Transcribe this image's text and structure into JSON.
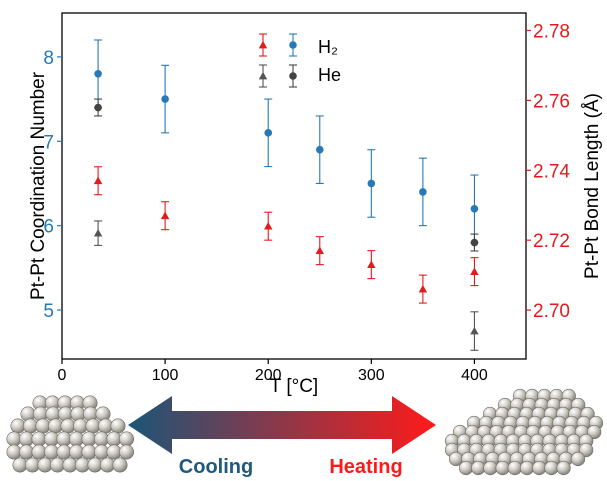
{
  "chart_data": {
    "type": "scatter",
    "xlabel": "T [°C]",
    "ylabel_left": "Pt-Pt Coordination Number",
    "ylabel_right": "Pt-Pt Bond Length (Å)",
    "xlim": [
      0,
      450
    ],
    "ylim_left": [
      4.42,
      8.52
    ],
    "ylim_right": [
      2.686,
      2.785
    ],
    "x_ticks": [
      0,
      100,
      200,
      300,
      400
    ],
    "y_left_ticks": [
      5,
      6,
      7,
      8
    ],
    "y_right_ticks": [
      2.7,
      2.72,
      2.74,
      2.76,
      2.78
    ],
    "x_tick_labels": [
      "0",
      "100",
      "200",
      "300",
      "400"
    ],
    "y_left_tick_labels": [
      "5",
      "6",
      "7",
      "8"
    ],
    "y_right_tick_labels": [
      "2.70",
      "2.72",
      "2.74",
      "2.76",
      "2.78"
    ],
    "grid": false,
    "legend_position": "top-center",
    "legend": {
      "row_h2": "H₂",
      "row_he": "He"
    },
    "colors": {
      "cn_h2": "#2878b5",
      "cn_he": "#444444",
      "bl_h2": "#e41a1c",
      "bl_he": "#555555",
      "left_axis": "#2878b5",
      "right_axis": "#e41a1c"
    },
    "series": [
      {
        "axis": "left",
        "marker": "circle",
        "color_key": "cn_h2",
        "points": [
          {
            "x": 35,
            "y": 7.8,
            "err": 0.4
          },
          {
            "x": 100,
            "y": 7.5,
            "err": 0.4
          },
          {
            "x": 200,
            "y": 7.1,
            "err": 0.4
          },
          {
            "x": 250,
            "y": 6.9,
            "err": 0.4
          },
          {
            "x": 300,
            "y": 6.5,
            "err": 0.4
          },
          {
            "x": 350,
            "y": 6.4,
            "err": 0.4
          },
          {
            "x": 400,
            "y": 6.2,
            "err": 0.4
          }
        ]
      },
      {
        "axis": "left",
        "marker": "circle",
        "color_key": "cn_he",
        "points": [
          {
            "x": 35,
            "y": 7.4,
            "err": 0.1
          },
          {
            "x": 400,
            "y": 5.8,
            "err": 0.1
          }
        ]
      },
      {
        "axis": "right",
        "marker": "triangle",
        "color_key": "bl_h2",
        "points": [
          {
            "x": 35,
            "y": 2.737,
            "err": 0.004
          },
          {
            "x": 100,
            "y": 2.727,
            "err": 0.004
          },
          {
            "x": 200,
            "y": 2.724,
            "err": 0.004
          },
          {
            "x": 250,
            "y": 2.717,
            "err": 0.004
          },
          {
            "x": 300,
            "y": 2.713,
            "err": 0.004
          },
          {
            "x": 350,
            "y": 2.706,
            "err": 0.004
          },
          {
            "x": 400,
            "y": 2.711,
            "err": 0.004
          }
        ]
      },
      {
        "axis": "right",
        "marker": "triangle",
        "color_key": "bl_he",
        "points": [
          {
            "x": 35,
            "y": 2.722,
            "err": 0.0035
          },
          {
            "x": 400,
            "y": 2.694,
            "err": 0.0055
          }
        ]
      }
    ]
  },
  "bottom": {
    "left_label": "Cooling",
    "right_label": "Heating",
    "left_color": "#1f5a7e",
    "right_color": "#ff1a1a",
    "arrow_gradient": [
      "#1c5577",
      "#ff1a1a"
    ]
  }
}
